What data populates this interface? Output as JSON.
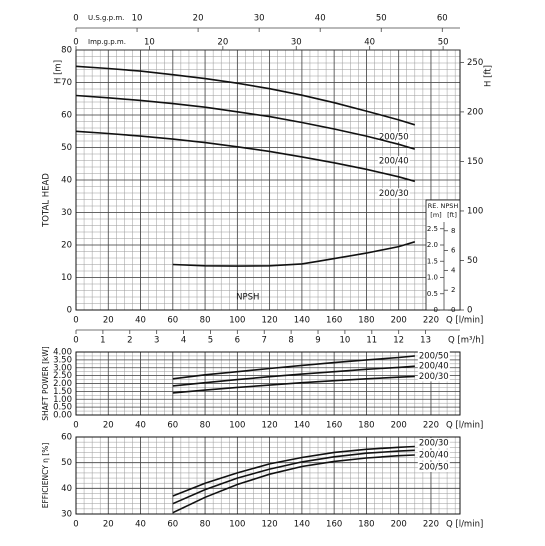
{
  "chart_data": [
    {
      "type": "line",
      "ylabel": "H [m]",
      "ytitle": "TOTAL HEAD",
      "y2label": "H [ft]",
      "xlabel": "Q [l/min]",
      "xlim": [
        0,
        238
      ],
      "xticks": [
        0,
        20,
        40,
        60,
        80,
        100,
        120,
        140,
        160,
        180,
        200,
        220
      ],
      "ylim": [
        0,
        80
      ],
      "yticks": [
        0,
        10,
        20,
        30,
        40,
        50,
        60,
        70,
        80
      ],
      "y2lim": [
        0,
        262.5
      ],
      "y2ticks": [
        0,
        50,
        100,
        150,
        200,
        250
      ],
      "x_secondary": [
        {
          "label": "Q [m³/h]",
          "xlim": [
            0,
            14.28
          ],
          "xticks": [
            0,
            1,
            2,
            3,
            4,
            5,
            6,
            7,
            8,
            9,
            10,
            11,
            12,
            13
          ]
        },
        {
          "label": "U.S.g.p.m.",
          "xlim": [
            0,
            62.9
          ],
          "xticks": [
            0,
            10,
            20,
            30,
            40,
            50,
            60
          ]
        },
        {
          "label": "Imp.g.p.m.",
          "xlim": [
            0,
            52.3
          ],
          "xticks": [
            0,
            10,
            20,
            30,
            40,
            50
          ]
        }
      ],
      "grid": true,
      "series": [
        {
          "name": "200/50",
          "color": "#111111",
          "x": [
            0,
            20,
            40,
            60,
            80,
            100,
            120,
            140,
            160,
            180,
            200,
            210
          ],
          "values": [
            75,
            74.3,
            73.5,
            72.4,
            71.2,
            69.8,
            68.1,
            66.1,
            63.8,
            61.2,
            58.5,
            57
          ]
        },
        {
          "name": "200/40",
          "color": "#111111",
          "x": [
            0,
            20,
            40,
            60,
            80,
            100,
            120,
            140,
            160,
            180,
            200,
            210
          ],
          "values": [
            66,
            65.3,
            64.5,
            63.5,
            62.4,
            61,
            59.5,
            57.7,
            55.7,
            53.5,
            51,
            49.5
          ]
        },
        {
          "name": "200/30",
          "color": "#111111",
          "x": [
            0,
            20,
            40,
            60,
            80,
            100,
            120,
            140,
            160,
            180,
            200,
            210
          ],
          "values": [
            55,
            54.3,
            53.5,
            52.6,
            51.5,
            50.2,
            48.8,
            47.1,
            45.3,
            43.3,
            41,
            39.6
          ]
        }
      ],
      "npsh": {
        "title": "RE. NPSH",
        "unit": "[m]",
        "unit2": "[ft]",
        "ylim": [
          0,
          8
        ],
        "yticks": [
          0,
          0.5,
          {
            "value": 1,
            "label": "1.0"
          },
          1.5,
          {
            "value": 2,
            "label": "2.0"
          },
          2.5
        ],
        "y2lim": [
          0,
          26.25
        ],
        "y2ticks": [
          0,
          2,
          4,
          6,
          8
        ],
        "series": [
          {
            "name": "NPSH",
            "color": "#111111",
            "x": [
              60,
              80,
              100,
              120,
              140,
              150,
              160,
              180,
              200,
              210
            ],
            "values": [
              1.4,
              1.36,
              1.35,
              1.36,
              1.42,
              1.5,
              1.58,
              1.75,
              1.95,
              2.1
            ]
          }
        ]
      }
    },
    {
      "type": "line",
      "ylabel": "SHAFT POWER [kW]",
      "xlabel": "Q [l/min]",
      "xlim": [
        0,
        238
      ],
      "xticks": [
        0,
        20,
        40,
        60,
        80,
        100,
        120,
        140,
        160,
        180,
        200,
        220
      ],
      "ylim": [
        0,
        4
      ],
      "yticks": [
        {
          "value": 0,
          "label": "0.00"
        },
        {
          "value": 0.5,
          "label": "0.50"
        },
        {
          "value": 1,
          "label": "1.00"
        },
        {
          "value": 1.5,
          "label": "1.50"
        },
        {
          "value": 2,
          "label": "2.00"
        },
        {
          "value": 2.5,
          "label": "2.50"
        },
        {
          "value": 3,
          "label": "3.00"
        },
        {
          "value": 3.5,
          "label": "3.50"
        },
        {
          "value": 4,
          "label": "4.00"
        }
      ],
      "grid": true,
      "series": [
        {
          "name": "200/50",
          "color": "#111111",
          "x": [
            60,
            80,
            100,
            120,
            140,
            160,
            180,
            200,
            210
          ],
          "values": [
            2.3,
            2.55,
            2.75,
            2.95,
            3.15,
            3.33,
            3.5,
            3.65,
            3.75
          ]
        },
        {
          "name": "200/40",
          "color": "#111111",
          "x": [
            60,
            80,
            100,
            120,
            140,
            160,
            180,
            200,
            210
          ],
          "values": [
            1.85,
            2.05,
            2.25,
            2.43,
            2.6,
            2.75,
            2.9,
            3.02,
            3.1
          ]
        },
        {
          "name": "200/30",
          "color": "#111111",
          "x": [
            60,
            80,
            100,
            120,
            140,
            160,
            180,
            200,
            210
          ],
          "values": [
            1.4,
            1.58,
            1.75,
            1.9,
            2.05,
            2.18,
            2.3,
            2.4,
            2.45
          ]
        }
      ]
    },
    {
      "type": "line",
      "ylabel": "EFFICIENCY  η [%]",
      "xlabel": "Q [l/min]",
      "xlim": [
        0,
        238
      ],
      "xticks": [
        0,
        20,
        40,
        60,
        80,
        100,
        120,
        140,
        160,
        180,
        200,
        220
      ],
      "ylim": [
        30,
        60
      ],
      "yticks": [
        30,
        40,
        50,
        60
      ],
      "grid": true,
      "series": [
        {
          "name": "200/30",
          "color": "#111111",
          "x": [
            60,
            80,
            100,
            120,
            140,
            160,
            180,
            200,
            210
          ],
          "values": [
            37,
            42,
            46,
            49.5,
            52,
            54,
            55.2,
            56,
            56.3
          ]
        },
        {
          "name": "200/40",
          "color": "#111111",
          "x": [
            60,
            80,
            100,
            120,
            140,
            160,
            180,
            200,
            210
          ],
          "values": [
            34,
            39.5,
            44,
            47.5,
            50.3,
            52.3,
            53.7,
            54.5,
            54.8
          ]
        },
        {
          "name": "200/50",
          "color": "#111111",
          "x": [
            60,
            80,
            100,
            120,
            140,
            160,
            180,
            200,
            210
          ],
          "values": [
            30.5,
            36.5,
            41.5,
            45.5,
            48.5,
            50.5,
            51.8,
            52.7,
            53
          ]
        }
      ]
    }
  ]
}
